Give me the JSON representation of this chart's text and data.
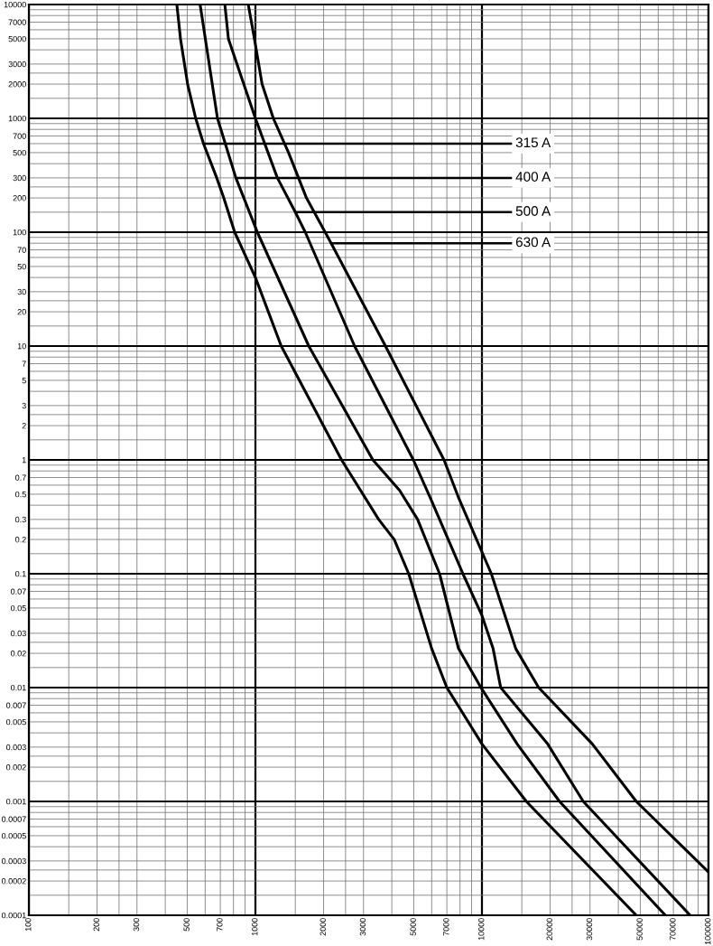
{
  "chart_data": {
    "type": "line",
    "log": "xy",
    "grid": true,
    "line_style": "solid",
    "xlim": [
      100,
      100000
    ],
    "ylim": [
      0.0001,
      10000
    ],
    "xticks": [
      100,
      {
        "value": 150,
        "label": null
      },
      200,
      {
        "value": 250,
        "label": null
      },
      300,
      {
        "value": 400,
        "label": null
      },
      500,
      {
        "value": 600,
        "label": null
      },
      700,
      {
        "value": 800,
        "label": null
      },
      {
        "value": 900,
        "label": null
      },
      1000,
      {
        "value": 1500,
        "label": null
      },
      2000,
      {
        "value": 2500,
        "label": null
      },
      3000,
      {
        "value": 4000,
        "label": null
      },
      5000,
      {
        "value": 6000,
        "label": null
      },
      7000,
      {
        "value": 8000,
        "label": null
      },
      {
        "value": 9000,
        "label": null
      },
      10000,
      {
        "value": 15000,
        "label": null
      },
      20000,
      {
        "value": 25000,
        "label": null
      },
      30000,
      {
        "value": 40000,
        "label": null
      },
      50000,
      {
        "value": 60000,
        "label": null
      },
      70000,
      {
        "value": 80000,
        "label": null
      },
      {
        "value": 90000,
        "label": null
      },
      100000
    ],
    "yticks": [
      0.0001,
      {
        "value": 0.00015,
        "label": null
      },
      0.0002,
      {
        "value": 0.00025,
        "label": null
      },
      0.0003,
      {
        "value": 0.0004,
        "label": null
      },
      0.0005,
      {
        "value": 0.0006,
        "label": null
      },
      0.0007,
      {
        "value": 0.0008,
        "label": null
      },
      {
        "value": 0.0009,
        "label": null
      },
      0.001,
      {
        "value": 0.0015,
        "label": null
      },
      0.002,
      {
        "value": 0.0025,
        "label": null
      },
      0.003,
      {
        "value": 0.004,
        "label": null
      },
      0.005,
      {
        "value": 0.006,
        "label": null
      },
      0.007,
      {
        "value": 0.008,
        "label": null
      },
      {
        "value": 0.009,
        "label": null
      },
      0.01,
      {
        "value": 0.015,
        "label": null
      },
      0.02,
      {
        "value": 0.025,
        "label": null
      },
      0.03,
      {
        "value": 0.04,
        "label": null
      },
      0.05,
      {
        "value": 0.06,
        "label": null
      },
      0.07,
      {
        "value": 0.08,
        "label": null
      },
      {
        "value": 0.09,
        "label": null
      },
      0.1,
      {
        "value": 0.15,
        "label": null
      },
      0.2,
      {
        "value": 0.25,
        "label": null
      },
      0.3,
      {
        "value": 0.4,
        "label": null
      },
      0.5,
      {
        "value": 0.6,
        "label": null
      },
      0.7,
      {
        "value": 0.8,
        "label": null
      },
      {
        "value": 0.9,
        "label": null
      },
      1,
      {
        "value": 1.5,
        "label": null
      },
      2,
      {
        "value": 2.5,
        "label": null
      },
      3,
      {
        "value": 4,
        "label": null
      },
      5,
      {
        "value": 6,
        "label": null
      },
      7,
      {
        "value": 8,
        "label": null
      },
      {
        "value": 9,
        "label": null
      },
      10,
      {
        "value": 15,
        "label": null
      },
      20,
      {
        "value": 25,
        "label": null
      },
      30,
      {
        "value": 40,
        "label": null
      },
      50,
      {
        "value": 60,
        "label": null
      },
      70,
      {
        "value": 80,
        "label": null
      },
      {
        "value": 90,
        "label": null
      },
      100,
      {
        "value": 150,
        "label": null
      },
      200,
      {
        "value": 250,
        "label": null
      },
      300,
      {
        "value": 400,
        "label": null
      },
      500,
      {
        "value": 600,
        "label": null
      },
      700,
      {
        "value": 800,
        "label": null
      },
      {
        "value": 900,
        "label": null
      },
      1000,
      {
        "value": 1500,
        "label": null
      },
      2000,
      {
        "value": 2500,
        "label": null
      },
      3000,
      {
        "value": 4000,
        "label": null
      },
      5000,
      {
        "value": 6000,
        "label": null
      },
      7000,
      {
        "value": 8000,
        "label": null
      },
      {
        "value": 9000,
        "label": null
      },
      10000
    ],
    "series": [
      {
        "color": "#000000",
        "x": [
          450,
          467,
          502,
          545,
          590,
          675,
          725,
          810,
          1000,
          1300,
          2400,
          3500,
          4100,
          4750,
          6000,
          7000,
          10000,
          15700,
          48000
        ],
        "values": [
          10000,
          5000,
          2000,
          1000,
          600,
          300,
          200,
          100,
          40,
          10,
          1,
          0.3,
          0.2,
          0.1,
          0.022,
          0.01,
          0.0032,
          0.001,
          0.0001
        ]
      },
      {
        "color": "#000000",
        "x": [
          570,
          680,
          820,
          1020,
          1720,
          3300,
          4330,
          5200,
          6500,
          7880,
          9900,
          14300,
          22000,
          64500
        ],
        "values": [
          10000,
          1000,
          300,
          100,
          10,
          1,
          0.54,
          0.3,
          0.1,
          0.022,
          0.01,
          0.0032,
          0.001,
          0.0001
        ]
      },
      {
        "color": "#000000",
        "x": [
          733,
          760,
          1000,
          1250,
          1500,
          1660,
          2740,
          4980,
          5900,
          7100,
          8240,
          10000,
          11200,
          12100,
          19500,
          28000,
          83000
        ],
        "values": [
          10000,
          5000,
          1000,
          300,
          150,
          100,
          10,
          1,
          0.47,
          0.2,
          0.1,
          0.043,
          0.022,
          0.01,
          0.0032,
          0.001,
          0.0001
        ]
      },
      {
        "color": "#000000",
        "x": [
          930,
          990,
          1070,
          1200,
          1400,
          1680,
          2160,
          3750,
          6800,
          7870,
          11000,
          14100,
          17800,
          30700,
          48000,
          100000
        ],
        "values": [
          10000,
          5000,
          2000,
          1000,
          500,
          200,
          80,
          10,
          1,
          0.47,
          0.1,
          0.022,
          0.01,
          0.0032,
          0.001,
          0.00024
        ]
      }
    ],
    "annotations": [
      {
        "text": "315 A",
        "x": 590,
        "y": 600
      },
      {
        "text": "400 A",
        "x": 820,
        "y": 300
      },
      {
        "text": "500 A",
        "x": 1500,
        "y": 150
      },
      {
        "text": "630 A",
        "x": 2160,
        "y": 80
      }
    ]
  }
}
